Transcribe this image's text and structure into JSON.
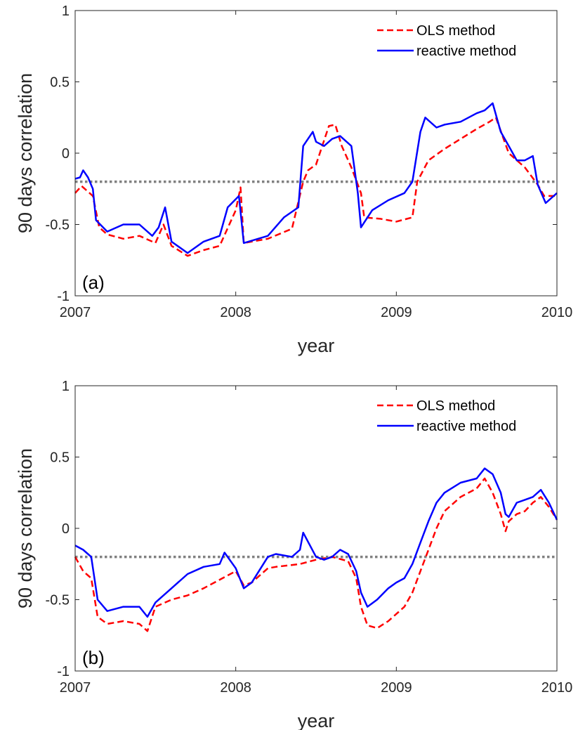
{
  "chart_data": [
    {
      "type": "line",
      "panel_label": "(a)",
      "xlabel": "year",
      "ylabel": "90 days correlation",
      "xlim": [
        2007,
        2010
      ],
      "ylim": [
        -1,
        1
      ],
      "x_ticks": [
        "2007",
        "2008",
        "2009",
        "2010"
      ],
      "y_ticks": [
        "-1",
        "-0.5",
        "0",
        "0.5",
        "1"
      ],
      "legend_position": "top-right",
      "reference_line": {
        "y": -0.2,
        "style": "dotted",
        "color": "#808080"
      },
      "series": [
        {
          "name": "OLS method",
          "color": "#ff0000",
          "style": "dashed",
          "x": [
            2007.0,
            2007.04,
            2007.08,
            2007.11,
            2007.15,
            2007.2,
            2007.3,
            2007.4,
            2007.5,
            2007.55,
            2007.6,
            2007.7,
            2007.8,
            2007.9,
            2008.0,
            2008.03,
            2008.05,
            2008.2,
            2008.35,
            2008.42,
            2008.45,
            2008.5,
            2008.58,
            2008.62,
            2008.66,
            2008.72,
            2008.78,
            2008.8,
            2008.9,
            2009.0,
            2009.1,
            2009.13,
            2009.2,
            2009.3,
            2009.4,
            2009.5,
            2009.58,
            2009.62,
            2009.7,
            2009.8,
            2009.88,
            2009.92,
            2010.0
          ],
          "y": [
            -0.28,
            -0.23,
            -0.27,
            -0.3,
            -0.52,
            -0.57,
            -0.6,
            -0.58,
            -0.63,
            -0.5,
            -0.65,
            -0.72,
            -0.68,
            -0.65,
            -0.4,
            -0.24,
            -0.63,
            -0.6,
            -0.53,
            -0.2,
            -0.12,
            -0.08,
            0.19,
            0.2,
            0.05,
            -0.1,
            -0.28,
            -0.45,
            -0.46,
            -0.48,
            -0.45,
            -0.2,
            -0.05,
            0.03,
            0.1,
            0.17,
            0.22,
            0.25,
            0.0,
            -0.1,
            -0.22,
            -0.3,
            -0.3
          ]
        },
        {
          "name": "reactive method",
          "color": "#0000ff",
          "style": "solid",
          "x": [
            2007.0,
            2007.03,
            2007.05,
            2007.08,
            2007.11,
            2007.13,
            2007.2,
            2007.3,
            2007.4,
            2007.48,
            2007.52,
            2007.56,
            2007.6,
            2007.7,
            2007.8,
            2007.9,
            2007.95,
            2008.02,
            2008.05,
            2008.2,
            2008.3,
            2008.39,
            2008.42,
            2008.48,
            2008.5,
            2008.55,
            2008.6,
            2008.65,
            2008.72,
            2008.76,
            2008.78,
            2008.85,
            2008.95,
            2009.05,
            2009.1,
            2009.15,
            2009.18,
            2009.25,
            2009.3,
            2009.4,
            2009.5,
            2009.55,
            2009.6,
            2009.65,
            2009.7,
            2009.75,
            2009.8,
            2009.85,
            2009.88,
            2009.93,
            2010.0
          ],
          "y": [
            -0.18,
            -0.17,
            -0.12,
            -0.17,
            -0.25,
            -0.47,
            -0.55,
            -0.5,
            -0.5,
            -0.58,
            -0.52,
            -0.38,
            -0.62,
            -0.7,
            -0.62,
            -0.58,
            -0.38,
            -0.3,
            -0.63,
            -0.58,
            -0.45,
            -0.38,
            0.05,
            0.15,
            0.08,
            0.05,
            0.1,
            0.12,
            0.05,
            -0.28,
            -0.52,
            -0.4,
            -0.33,
            -0.28,
            -0.2,
            0.15,
            0.25,
            0.18,
            0.2,
            0.22,
            0.28,
            0.3,
            0.35,
            0.15,
            0.05,
            -0.05,
            -0.05,
            -0.02,
            -0.22,
            -0.35,
            -0.28
          ]
        }
      ]
    },
    {
      "type": "line",
      "panel_label": "(b)",
      "xlabel": "year",
      "ylabel": "90 days correlation",
      "xlim": [
        2007,
        2010
      ],
      "ylim": [
        -1,
        1
      ],
      "x_ticks": [
        "2007",
        "2008",
        "2009",
        "2010"
      ],
      "y_ticks": [
        "-1",
        "-0.5",
        "0",
        "0.5",
        "1"
      ],
      "legend_position": "top-right",
      "reference_line": {
        "y": -0.2,
        "style": "dotted",
        "color": "#808080"
      },
      "series": [
        {
          "name": "OLS method",
          "color": "#ff0000",
          "style": "dashed",
          "x": [
            2007.0,
            2007.05,
            2007.1,
            2007.14,
            2007.2,
            2007.3,
            2007.4,
            2007.45,
            2007.5,
            2007.6,
            2007.7,
            2007.8,
            2007.9,
            2008.0,
            2008.05,
            2008.1,
            2008.2,
            2008.25,
            2008.4,
            2008.5,
            2008.6,
            2008.7,
            2008.75,
            2008.78,
            2008.82,
            2008.88,
            2008.95,
            2009.0,
            2009.05,
            2009.1,
            2009.15,
            2009.2,
            2009.25,
            2009.3,
            2009.4,
            2009.5,
            2009.55,
            2009.6,
            2009.65,
            2009.68,
            2009.7,
            2009.75,
            2009.8,
            2009.85,
            2009.9,
            2009.95,
            2010.0
          ],
          "y": [
            -0.2,
            -0.3,
            -0.35,
            -0.62,
            -0.67,
            -0.65,
            -0.67,
            -0.72,
            -0.55,
            -0.5,
            -0.47,
            -0.42,
            -0.36,
            -0.3,
            -0.4,
            -0.38,
            -0.28,
            -0.27,
            -0.25,
            -0.22,
            -0.2,
            -0.23,
            -0.35,
            -0.55,
            -0.68,
            -0.7,
            -0.65,
            -0.6,
            -0.55,
            -0.45,
            -0.3,
            -0.15,
            0.0,
            0.12,
            0.22,
            0.28,
            0.35,
            0.25,
            0.1,
            -0.02,
            0.05,
            0.1,
            0.12,
            0.18,
            0.22,
            0.15,
            0.06
          ]
        },
        {
          "name": "reactive method",
          "color": "#0000ff",
          "style": "solid",
          "x": [
            2007.0,
            2007.05,
            2007.1,
            2007.14,
            2007.2,
            2007.3,
            2007.4,
            2007.45,
            2007.5,
            2007.6,
            2007.7,
            2007.8,
            2007.9,
            2007.93,
            2008.0,
            2008.05,
            2008.1,
            2008.2,
            2008.25,
            2008.35,
            2008.4,
            2008.42,
            2008.5,
            2008.55,
            2008.6,
            2008.65,
            2008.7,
            2008.75,
            2008.78,
            2008.82,
            2008.88,
            2008.95,
            2009.0,
            2009.05,
            2009.1,
            2009.15,
            2009.2,
            2009.25,
            2009.3,
            2009.4,
            2009.5,
            2009.55,
            2009.6,
            2009.65,
            2009.68,
            2009.7,
            2009.75,
            2009.8,
            2009.85,
            2009.9,
            2009.95,
            2010.0
          ],
          "y": [
            -0.12,
            -0.15,
            -0.2,
            -0.5,
            -0.58,
            -0.55,
            -0.55,
            -0.62,
            -0.52,
            -0.42,
            -0.32,
            -0.27,
            -0.25,
            -0.17,
            -0.28,
            -0.42,
            -0.38,
            -0.2,
            -0.18,
            -0.2,
            -0.15,
            -0.03,
            -0.2,
            -0.22,
            -0.2,
            -0.15,
            -0.18,
            -0.3,
            -0.45,
            -0.55,
            -0.5,
            -0.42,
            -0.38,
            -0.35,
            -0.25,
            -0.1,
            0.05,
            0.18,
            0.25,
            0.32,
            0.35,
            0.42,
            0.38,
            0.25,
            0.1,
            0.08,
            0.18,
            0.2,
            0.22,
            0.27,
            0.18,
            0.06
          ]
        }
      ]
    }
  ]
}
